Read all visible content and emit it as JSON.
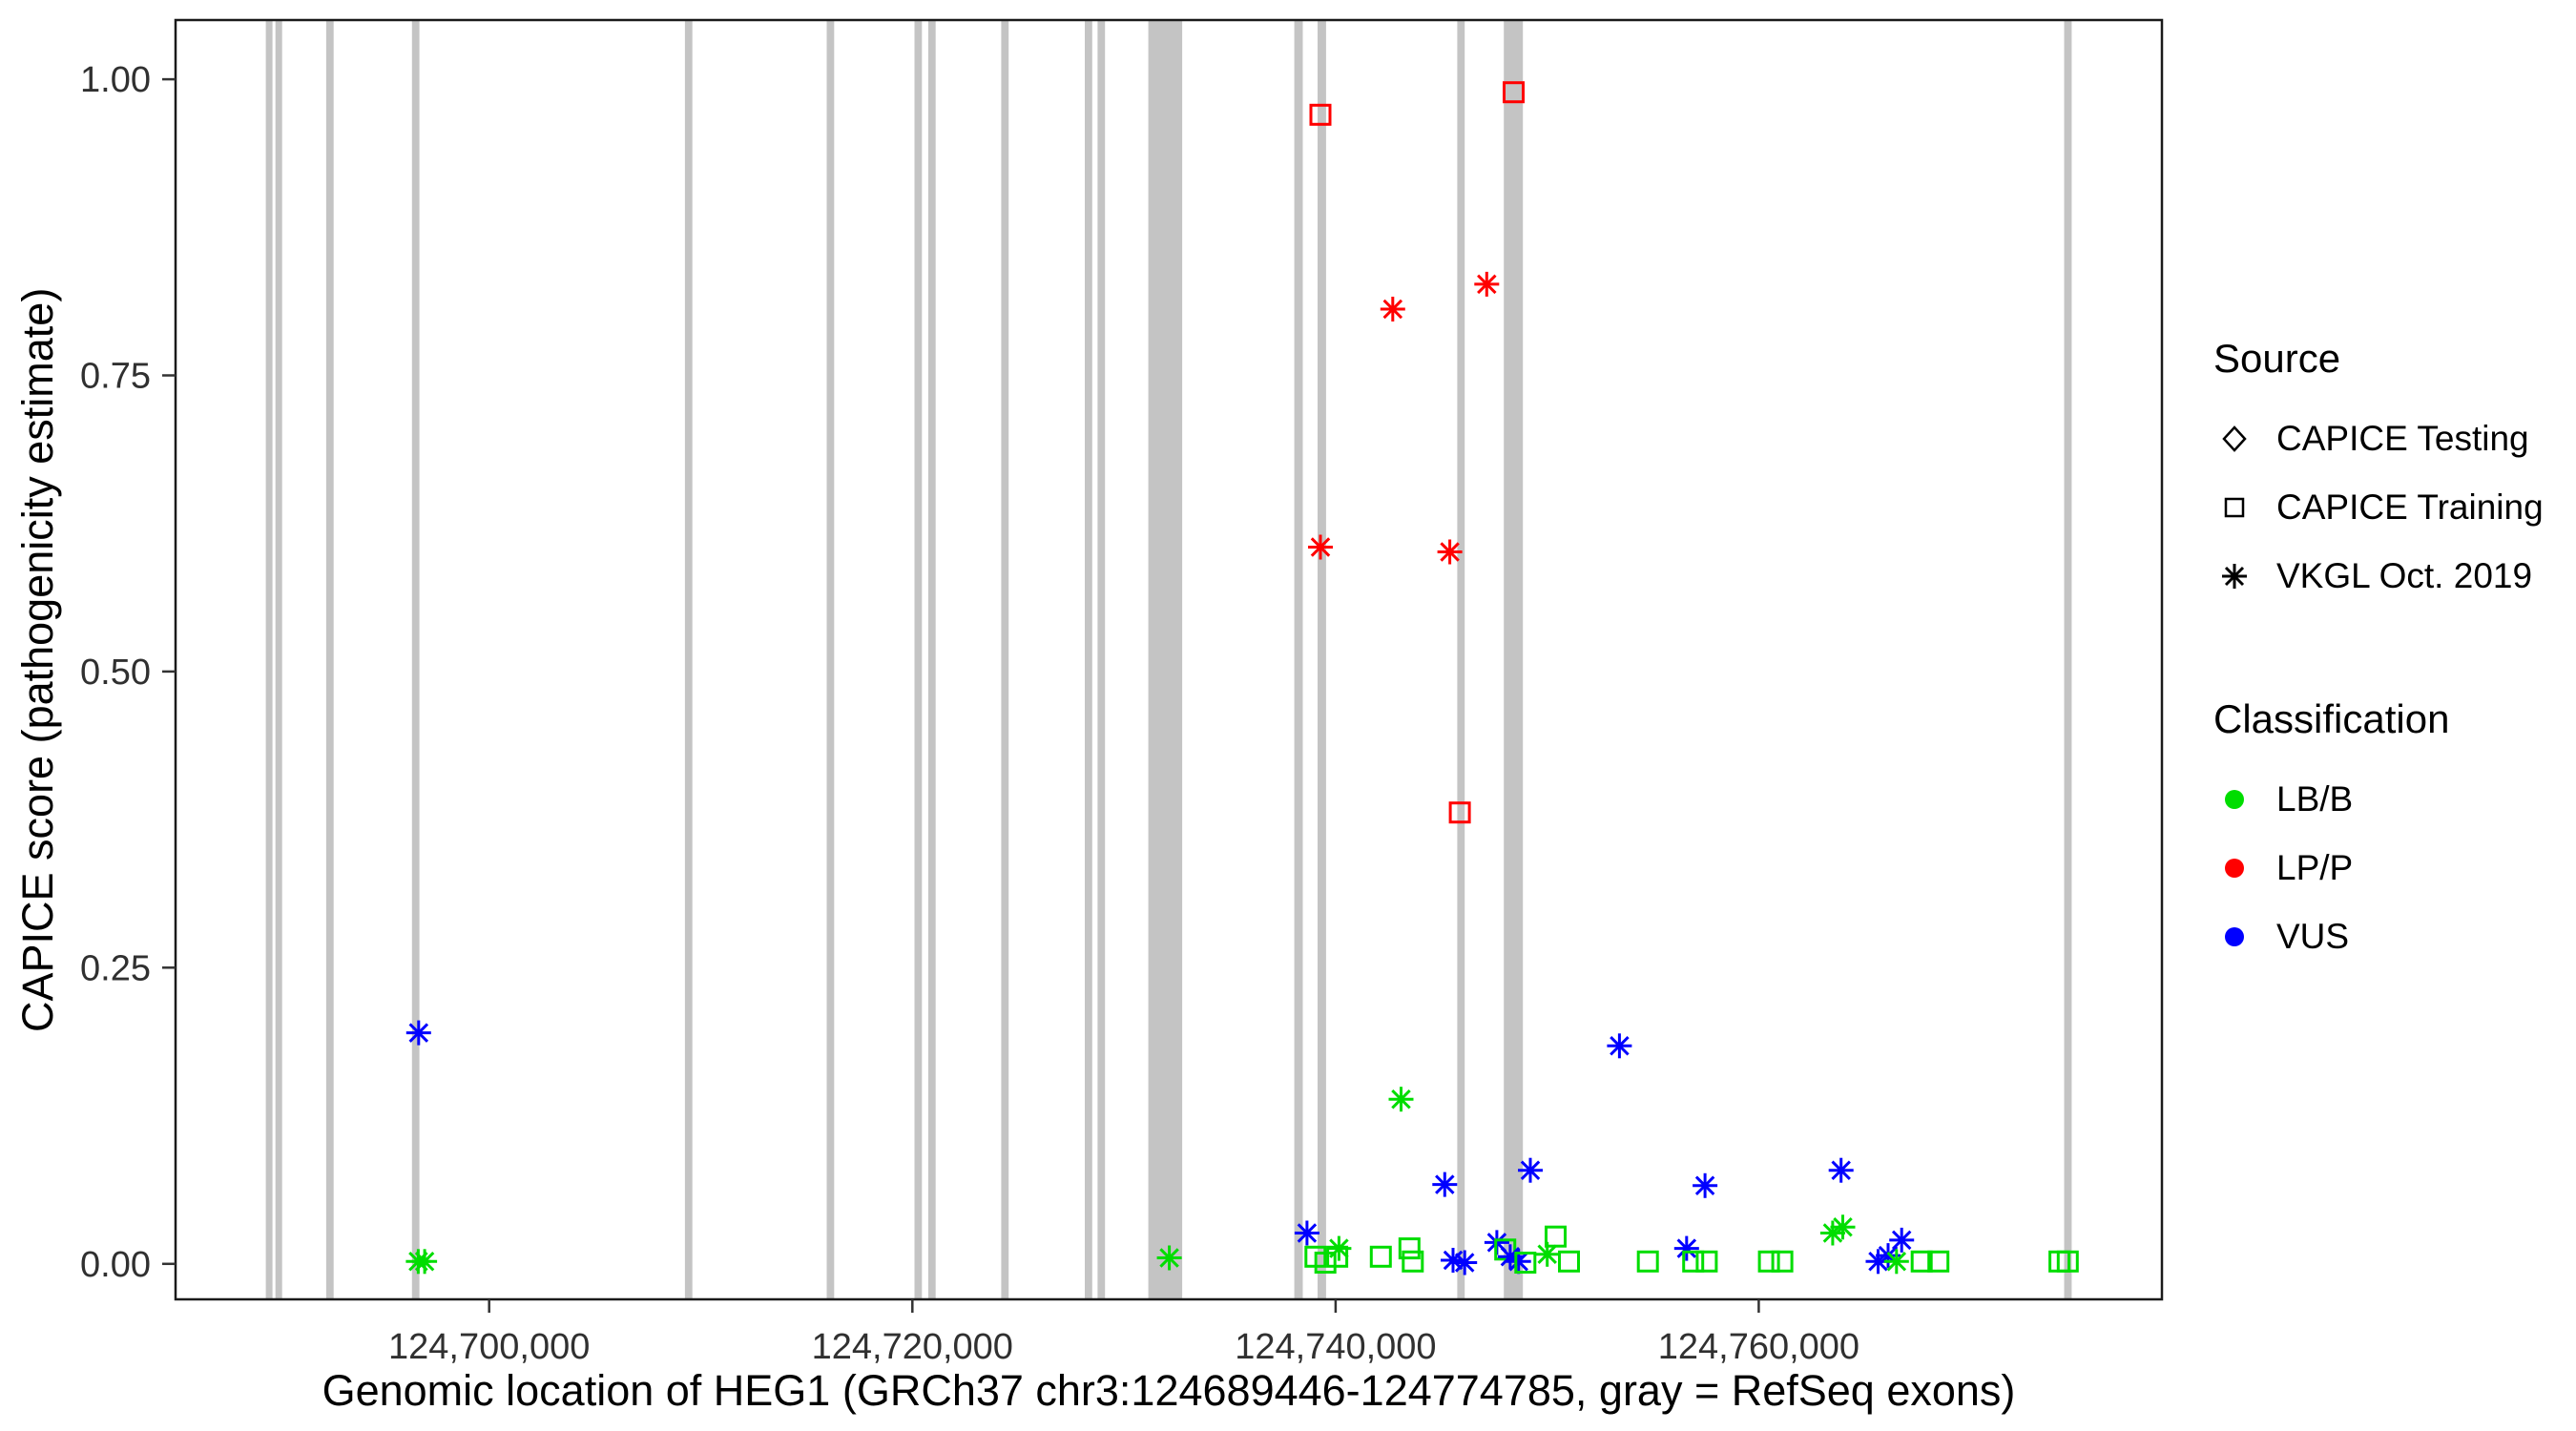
{
  "chart_data": {
    "type": "scatter",
    "title": "",
    "xlabel": "Genomic location of HEG1 (GRCh37 chr3:124689446-124774785, gray = RefSeq exons)",
    "ylabel": "CAPICE score (pathogenicity estimate)",
    "gene": {
      "name": "HEG1",
      "assembly": "GRCh37",
      "chromosome": "chr3",
      "start": 124689446,
      "end": 124774785
    },
    "x_domain": [
      124685179,
      124779052
    ],
    "y_domain": [
      -0.03,
      1.05
    ],
    "grid": false,
    "panel_border": true,
    "x_ticks": [
      {
        "value": 124700000,
        "label": "124,700,000"
      },
      {
        "value": 124720000,
        "label": "124,720,000"
      },
      {
        "value": 124740000,
        "label": "124,740,000"
      },
      {
        "value": 124760000,
        "label": "124,760,000"
      }
    ],
    "y_ticks": [
      {
        "value": 0.0,
        "label": "0.00"
      },
      {
        "value": 0.25,
        "label": "0.25"
      },
      {
        "value": 0.5,
        "label": "0.50"
      },
      {
        "value": 0.75,
        "label": "0.75"
      },
      {
        "value": 1.0,
        "label": "1.00"
      }
    ],
    "exon_color": "#C4C4C4",
    "exons": [
      {
        "start": 124689446,
        "end": 124689760
      },
      {
        "start": 124689900,
        "end": 124690200
      },
      {
        "start": 124692300,
        "end": 124692650
      },
      {
        "start": 124696350,
        "end": 124696700
      },
      {
        "start": 124709250,
        "end": 124709600
      },
      {
        "start": 124715950,
        "end": 124716300
      },
      {
        "start": 124720100,
        "end": 124720450
      },
      {
        "start": 124720750,
        "end": 124721100
      },
      {
        "start": 124724200,
        "end": 124724550
      },
      {
        "start": 124728150,
        "end": 124728500
      },
      {
        "start": 124728750,
        "end": 124729100
      },
      {
        "start": 124731150,
        "end": 124732750
      },
      {
        "start": 124738050,
        "end": 124738450
      },
      {
        "start": 124739150,
        "end": 124739550
      },
      {
        "start": 124745750,
        "end": 124746100
      },
      {
        "start": 124747950,
        "end": 124748850
      },
      {
        "start": 124774430,
        "end": 124774785
      }
    ],
    "classification_colors": {
      "LB/B": "#00DD00",
      "LP/P": "#FF0000",
      "VUS": "#0000FF"
    },
    "source_shapes": {
      "CAPICE Testing": "diamond",
      "CAPICE Training": "square",
      "VKGL Oct. 2019": "asterisk"
    },
    "points": [
      {
        "x": 124696667,
        "y": 0.195,
        "source": "VKGL Oct. 2019",
        "classification": "VUS"
      },
      {
        "x": 124696650,
        "y": 0.002,
        "source": "VKGL Oct. 2019",
        "classification": "LB/B"
      },
      {
        "x": 124696950,
        "y": 0.002,
        "source": "VKGL Oct. 2019",
        "classification": "LB/B"
      },
      {
        "x": 124732143,
        "y": 0.005,
        "source": "VKGL Oct. 2019",
        "classification": "LB/B"
      },
      {
        "x": 124738650,
        "y": 0.026,
        "source": "VKGL Oct. 2019",
        "classification": "VUS"
      },
      {
        "x": 124739286,
        "y": 0.97,
        "source": "CAPICE Training",
        "classification": "LP/P"
      },
      {
        "x": 124739286,
        "y": 0.605,
        "source": "VKGL Oct. 2019",
        "classification": "LP/P"
      },
      {
        "x": 124739050,
        "y": 0.006,
        "source": "CAPICE Training",
        "classification": "LB/B"
      },
      {
        "x": 124739520,
        "y": 0.001,
        "source": "CAPICE Training",
        "classification": "LB/B"
      },
      {
        "x": 124740080,
        "y": 0.006,
        "source": "CAPICE Training",
        "classification": "LB/B"
      },
      {
        "x": 124740160,
        "y": 0.013,
        "source": "VKGL Oct. 2019",
        "classification": "LB/B"
      },
      {
        "x": 124742140,
        "y": 0.006,
        "source": "CAPICE Training",
        "classification": "LB/B"
      },
      {
        "x": 124742700,
        "y": 0.806,
        "source": "VKGL Oct. 2019",
        "classification": "LP/P"
      },
      {
        "x": 124743095,
        "y": 0.139,
        "source": "VKGL Oct. 2019",
        "classification": "LB/B"
      },
      {
        "x": 124743490,
        "y": 0.013,
        "source": "CAPICE Training",
        "classification": "LB/B"
      },
      {
        "x": 124743650,
        "y": 0.002,
        "source": "CAPICE Training",
        "classification": "LB/B"
      },
      {
        "x": 124745160,
        "y": 0.067,
        "source": "VKGL Oct. 2019",
        "classification": "VUS"
      },
      {
        "x": 124745400,
        "y": 0.601,
        "source": "VKGL Oct. 2019",
        "classification": "LP/P"
      },
      {
        "x": 124745550,
        "y": 0.003,
        "source": "VKGL Oct. 2019",
        "classification": "VUS"
      },
      {
        "x": 124745873,
        "y": 0.381,
        "source": "CAPICE Training",
        "classification": "LP/P"
      },
      {
        "x": 124746100,
        "y": 0.001,
        "source": "VKGL Oct. 2019",
        "classification": "VUS"
      },
      {
        "x": 124747143,
        "y": 0.827,
        "source": "VKGL Oct. 2019",
        "classification": "LP/P"
      },
      {
        "x": 124747620,
        "y": 0.018,
        "source": "VKGL Oct. 2019",
        "classification": "VUS"
      },
      {
        "x": 124748016,
        "y": 0.012,
        "source": "CAPICE Training",
        "classification": "LB/B"
      },
      {
        "x": 124748254,
        "y": 0.006,
        "source": "VKGL Oct. 2019",
        "classification": "VUS"
      },
      {
        "x": 124748413,
        "y": 0.989,
        "source": "CAPICE Training",
        "classification": "LP/P"
      },
      {
        "x": 124748650,
        "y": 0.002,
        "source": "VKGL Oct. 2019",
        "classification": "VUS"
      },
      {
        "x": 124748970,
        "y": 0.001,
        "source": "CAPICE Training",
        "classification": "LB/B"
      },
      {
        "x": 124749206,
        "y": 0.079,
        "source": "VKGL Oct. 2019",
        "classification": "VUS"
      },
      {
        "x": 124750000,
        "y": 0.008,
        "source": "VKGL Oct. 2019",
        "classification": "LB/B"
      },
      {
        "x": 124750400,
        "y": 0.023,
        "source": "CAPICE Training",
        "classification": "LB/B"
      },
      {
        "x": 124751030,
        "y": 0.002,
        "source": "CAPICE Training",
        "classification": "LB/B"
      },
      {
        "x": 124753413,
        "y": 0.184,
        "source": "VKGL Oct. 2019",
        "classification": "VUS"
      },
      {
        "x": 124754760,
        "y": 0.002,
        "source": "CAPICE Training",
        "classification": "LB/B"
      },
      {
        "x": 124756590,
        "y": 0.013,
        "source": "VKGL Oct. 2019",
        "classification": "VUS"
      },
      {
        "x": 124756900,
        "y": 0.002,
        "source": "CAPICE Training",
        "classification": "LB/B"
      },
      {
        "x": 124757460,
        "y": 0.066,
        "source": "VKGL Oct. 2019",
        "classification": "VUS"
      },
      {
        "x": 124757540,
        "y": 0.002,
        "source": "CAPICE Training",
        "classification": "LB/B"
      },
      {
        "x": 124760480,
        "y": 0.002,
        "source": "CAPICE Training",
        "classification": "LB/B"
      },
      {
        "x": 124761110,
        "y": 0.002,
        "source": "CAPICE Training",
        "classification": "LB/B"
      },
      {
        "x": 124763490,
        "y": 0.026,
        "source": "VKGL Oct. 2019",
        "classification": "LB/B"
      },
      {
        "x": 124763890,
        "y": 0.079,
        "source": "VKGL Oct. 2019",
        "classification": "VUS"
      },
      {
        "x": 124763970,
        "y": 0.031,
        "source": "VKGL Oct. 2019",
        "classification": "LB/B"
      },
      {
        "x": 124765640,
        "y": 0.002,
        "source": "VKGL Oct. 2019",
        "classification": "VUS"
      },
      {
        "x": 124766110,
        "y": 0.007,
        "source": "VKGL Oct. 2019",
        "classification": "VUS"
      },
      {
        "x": 124766510,
        "y": 0.002,
        "source": "VKGL Oct. 2019",
        "classification": "LB/B"
      },
      {
        "x": 124766750,
        "y": 0.02,
        "source": "VKGL Oct. 2019",
        "classification": "VUS"
      },
      {
        "x": 124767700,
        "y": 0.002,
        "source": "CAPICE Training",
        "classification": "LB/B"
      },
      {
        "x": 124768490,
        "y": 0.002,
        "source": "CAPICE Training",
        "classification": "LB/B"
      },
      {
        "x": 124774210,
        "y": 0.002,
        "source": "CAPICE Training",
        "classification": "LB/B"
      },
      {
        "x": 124774600,
        "y": 0.002,
        "source": "CAPICE Training",
        "classification": "LB/B"
      }
    ],
    "legend": {
      "position": "right",
      "source": {
        "title": "Source",
        "items": [
          {
            "label": "CAPICE Testing",
            "shape": "diamond"
          },
          {
            "label": "CAPICE Training",
            "shape": "square"
          },
          {
            "label": "VKGL Oct. 2019",
            "shape": "asterisk"
          }
        ]
      },
      "classification": {
        "title": "Classification",
        "items": [
          {
            "label": "LB/B",
            "color": "#00DD00"
          },
          {
            "label": "LP/P",
            "color": "#FF0000"
          },
          {
            "label": "VUS",
            "color": "#0000FF"
          }
        ]
      }
    }
  }
}
